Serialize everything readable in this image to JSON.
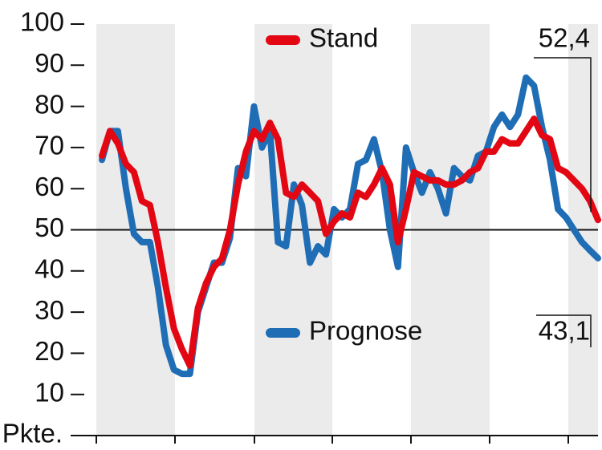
{
  "chart_data": {
    "type": "line",
    "series": [
      {
        "name": "Stand",
        "color": "#e30613",
        "values": [
          68,
          74,
          71,
          66,
          64,
          57,
          56,
          47,
          36,
          26,
          21,
          17,
          31,
          37,
          41,
          43,
          50,
          61,
          69,
          74,
          72,
          76,
          72,
          59,
          58,
          61,
          59,
          57,
          49,
          52,
          54,
          53,
          59,
          58,
          61,
          65,
          61,
          47,
          55,
          64,
          63,
          62,
          62,
          61,
          61,
          62,
          64,
          65,
          69,
          69,
          72,
          71,
          71,
          74,
          77,
          73,
          72,
          65,
          64,
          62,
          60,
          57,
          52.4
        ]
      },
      {
        "name": "Prognose",
        "color": "#1f6db5",
        "values": [
          67,
          74,
          74,
          60,
          49,
          47,
          47,
          36,
          22,
          16,
          15,
          15,
          30,
          36,
          42,
          42,
          48,
          65,
          63,
          80,
          70,
          74,
          47,
          46,
          61,
          56,
          42,
          46,
          44,
          55,
          53,
          55,
          66,
          67,
          72,
          64,
          50,
          41,
          70,
          64,
          59,
          64,
          60,
          54,
          65,
          63,
          62,
          68,
          69,
          75,
          78,
          75,
          78,
          87,
          85,
          75,
          67,
          55,
          53,
          50,
          47,
          45,
          43.1
        ]
      }
    ],
    "annotations": [
      {
        "label": "52,4",
        "value": 52.4,
        "series": 0
      },
      {
        "label": "43,1",
        "value": 43.1,
        "series": 1
      }
    ],
    "reference_line": 50,
    "ylim": [
      0,
      100
    ],
    "yticks": [
      {
        "value": 0,
        "label": "Pkte."
      },
      10,
      20,
      30,
      40,
      50,
      60,
      70,
      80,
      90,
      100
    ]
  }
}
